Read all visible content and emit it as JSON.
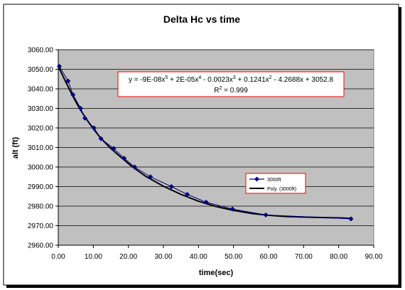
{
  "chart_data": {
    "type": "scatter",
    "title": "Delta Hc vs time",
    "xlabel": "time(sec)",
    "ylabel": "alt (ft)",
    "xlim": [
      0,
      90
    ],
    "ylim": [
      2960,
      3060
    ],
    "x_ticks": [
      "0.00",
      "10.00",
      "20.00",
      "30.00",
      "40.00",
      "50.00",
      "60.00",
      "70.00",
      "80.00",
      "90.00"
    ],
    "y_ticks": [
      "2960.00",
      "2970.00",
      "2980.00",
      "2990.00",
      "3000.00",
      "3010.00",
      "3020.00",
      "3030.00",
      "3040.00",
      "3050.00",
      "3060.00"
    ],
    "grid": "horizontal",
    "series": [
      {
        "name": "3000ft",
        "x": [
          0.3,
          2.8,
          4.2,
          6.4,
          7.6,
          10.2,
          12.2,
          15.8,
          18.8,
          21.8,
          26.3,
          32.3,
          36.8,
          42.2,
          49.7,
          59.2,
          83.5
        ],
        "y": [
          3051.5,
          3044.0,
          3037.0,
          3030.0,
          3025.0,
          3020.0,
          3014.5,
          3009.5,
          3004.5,
          3000.0,
          2995.0,
          2990.0,
          2986.0,
          2982.0,
          2978.5,
          2975.5,
          2973.5
        ]
      },
      {
        "name": "Poly. (3000ft)",
        "x": [
          0,
          2,
          4,
          6,
          8,
          10,
          12,
          15,
          18,
          21,
          25,
          30,
          35,
          40,
          45,
          50,
          55,
          60,
          65,
          70,
          75,
          80,
          83.5
        ],
        "y": [
          3051.5,
          3044.0,
          3036.8,
          3030.2,
          3024.6,
          3019.6,
          3015.0,
          3009.5,
          3004.8,
          3000.3,
          2995.2,
          2990.2,
          2986.0,
          2982.5,
          2979.8,
          2977.8,
          2976.3,
          2975.3,
          2974.7,
          2974.4,
          2974.2,
          2974.0,
          2973.7
        ]
      }
    ],
    "equation_line1": "y = -9E-08x",
    "equation_line1_sup1": "5",
    "equation_line1_mid": " + 2E-05x",
    "equation_line1_sup2": "4",
    "equation_line1_mid2": " - 0.0023x",
    "equation_line1_sup3": "3",
    "equation_line1_mid3": " + 0.1241x",
    "equation_line1_sup4": "2",
    "equation_line1_end": " - 4.2688x + 3052.8",
    "equation_line2": "R",
    "equation_line2_sup": "2",
    "equation_line2_end": " = 0.999",
    "legend_position": "right",
    "colors": {
      "outer_bg": "#ffffff",
      "plot_bg": "#c0c0c0",
      "series_marker": "#00007f",
      "trendline": "#000000",
      "highlight_border": "#ff0000"
    }
  }
}
